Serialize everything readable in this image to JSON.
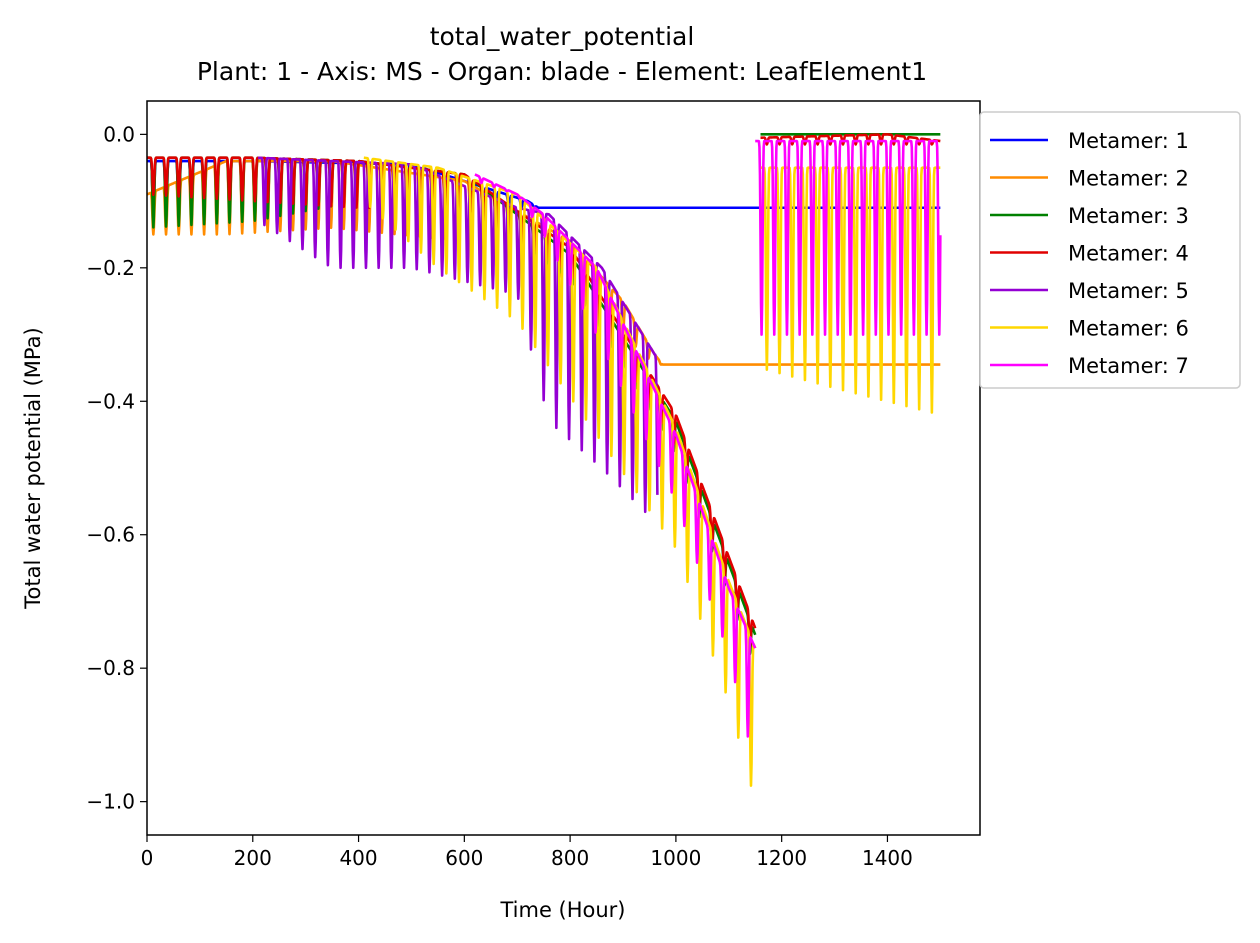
{
  "chart_data": {
    "type": "line",
    "title": "total_water_potential",
    "subtitle": "Plant: 1 - Axis: MS - Organ: blade - Element: LeafElement1",
    "xlabel": "Time (Hour)",
    "ylabel": "Total water potential (MPa)",
    "xlim": [
      0,
      1575
    ],
    "ylim": [
      -1.05,
      0.05
    ],
    "xticks": [
      0,
      200,
      400,
      600,
      800,
      1000,
      1200,
      1400
    ],
    "yticks": [
      -1.0,
      -0.8,
      -0.6,
      -0.4,
      -0.2,
      0.0
    ],
    "xtick_labels": [
      "0",
      "200",
      "400",
      "600",
      "800",
      "1000",
      "1200",
      "1400"
    ],
    "ytick_labels": [
      "−1.0",
      "−0.8",
      "−0.6",
      "−0.4",
      "−0.2",
      "0.0"
    ],
    "grid": false,
    "legend_position": "outside-top-right",
    "series": [
      {
        "name": "Metamer: 1",
        "color": "#0000ff",
        "segments": [
          {
            "start": 0,
            "end": 1500,
            "period": 24,
            "phases": [
              {
                "t": 0,
                "min": -0.12,
                "max": -0.04
              },
              {
                "t": 200,
                "min": -0.12,
                "max": -0.04
              },
              {
                "t": 500,
                "min": -0.11,
                "max": -0.045
              },
              {
                "t": 720,
                "min": -0.11,
                "max": -0.1
              },
              {
                "t": 740,
                "min": -0.11,
                "max": -0.11
              },
              {
                "t": 1500,
                "min": -0.11,
                "max": -0.11
              }
            ]
          }
        ]
      },
      {
        "name": "Metamer: 2",
        "color": "#ff8c00",
        "segments": [
          {
            "start": 0,
            "end": 1500,
            "period": 24,
            "phases": [
              {
                "t": 0,
                "min": -0.15,
                "max": -0.09
              },
              {
                "t": 150,
                "min": -0.15,
                "max": -0.04
              },
              {
                "t": 350,
                "min": -0.14,
                "max": -0.04
              },
              {
                "t": 600,
                "min": -0.16,
                "max": -0.07
              },
              {
                "t": 800,
                "min": -0.22,
                "max": -0.16
              },
              {
                "t": 900,
                "min": -0.3,
                "max": -0.25
              },
              {
                "t": 960,
                "min": -0.345,
                "max": -0.33
              },
              {
                "t": 975,
                "min": -0.345,
                "max": -0.345
              },
              {
                "t": 1500,
                "min": -0.345,
                "max": -0.345
              }
            ]
          }
        ]
      },
      {
        "name": "Metamer: 3",
        "color": "#008000",
        "segments": [
          {
            "start": 0,
            "end": 1150,
            "period": 24,
            "phases": [
              {
                "t": 0,
                "min": -0.14,
                "max": -0.035
              },
              {
                "t": 200,
                "min": -0.13,
                "max": -0.035
              },
              {
                "t": 400,
                "min": -0.1,
                "max": -0.04
              },
              {
                "t": 600,
                "min": -0.1,
                "max": -0.06
              },
              {
                "t": 800,
                "min": -0.22,
                "max": -0.18
              },
              {
                "t": 1000,
                "min": -0.48,
                "max": -0.43
              },
              {
                "t": 1150,
                "min": -0.8,
                "max": -0.75
              }
            ]
          },
          {
            "start": 1160,
            "end": 1500,
            "period": 24,
            "phases": [
              {
                "t": 1160,
                "min": 0.0,
                "max": 0.0
              },
              {
                "t": 1500,
                "min": 0.0,
                "max": 0.0
              }
            ]
          }
        ]
      },
      {
        "name": "Metamer: 4",
        "color": "#e00000",
        "segments": [
          {
            "start": 0,
            "end": 1150,
            "period": 24,
            "phases": [
              {
                "t": 0,
                "min": -0.09,
                "max": -0.035
              },
              {
                "t": 200,
                "min": -0.1,
                "max": -0.035
              },
              {
                "t": 400,
                "min": -0.11,
                "max": -0.04
              },
              {
                "t": 600,
                "min": -0.11,
                "max": -0.06
              },
              {
                "t": 800,
                "min": -0.21,
                "max": -0.17
              },
              {
                "t": 1000,
                "min": -0.47,
                "max": -0.42
              },
              {
                "t": 1150,
                "min": -0.79,
                "max": -0.74
              }
            ]
          },
          {
            "start": 1160,
            "end": 1500,
            "period": 24,
            "phases": [
              {
                "t": 1160,
                "min": -0.015,
                "max": -0.005
              },
              {
                "t": 1400,
                "min": -0.015,
                "max": 0.0
              },
              {
                "t": 1500,
                "min": -0.015,
                "max": -0.01
              }
            ]
          }
        ]
      },
      {
        "name": "Metamer: 5",
        "color": "#9400d3",
        "segments": [
          {
            "start": 210,
            "end": 965,
            "period": 24,
            "phases": [
              {
                "t": 210,
                "min": -0.13,
                "max": -0.035
              },
              {
                "t": 350,
                "min": -0.2,
                "max": -0.04
              },
              {
                "t": 500,
                "min": -0.2,
                "max": -0.045
              },
              {
                "t": 700,
                "min": -0.24,
                "max": -0.11
              },
              {
                "t": 760,
                "min": -0.43,
                "max": -0.12
              },
              {
                "t": 860,
                "min": -0.5,
                "max": -0.2
              },
              {
                "t": 960,
                "min": -0.58,
                "max": -0.33
              }
            ]
          }
        ]
      },
      {
        "name": "Metamer: 6",
        "color": "#ffd700",
        "segments": [
          {
            "start": 410,
            "end": 1150,
            "period": 24,
            "phases": [
              {
                "t": 410,
                "min": -0.1,
                "max": -0.035
              },
              {
                "t": 550,
                "min": -0.2,
                "max": -0.05
              },
              {
                "t": 700,
                "min": -0.28,
                "max": -0.09
              },
              {
                "t": 850,
                "min": -0.45,
                "max": -0.2
              },
              {
                "t": 1000,
                "min": -0.62,
                "max": -0.44
              },
              {
                "t": 1100,
                "min": -0.85,
                "max": -0.67
              },
              {
                "t": 1150,
                "min": -1.0,
                "max": -0.77
              }
            ]
          },
          {
            "start": 1160,
            "end": 1500,
            "period": 24,
            "phases": [
              {
                "t": 1160,
                "min": -0.35,
                "max": -0.05
              },
              {
                "t": 1300,
                "min": -0.38,
                "max": -0.05
              },
              {
                "t": 1500,
                "min": -0.42,
                "max": -0.05
              }
            ]
          }
        ]
      },
      {
        "name": "Metamer: 7",
        "color": "#ff00ff",
        "segments": [
          {
            "start": 620,
            "end": 1150,
            "period": 24,
            "phases": [
              {
                "t": 620,
                "min": -0.07,
                "max": -0.06
              },
              {
                "t": 700,
                "min": -0.09,
                "max": -0.09
              },
              {
                "t": 750,
                "min": -0.15,
                "max": -0.12
              },
              {
                "t": 850,
                "min": -0.3,
                "max": -0.2
              },
              {
                "t": 1000,
                "min": -0.55,
                "max": -0.45
              },
              {
                "t": 1100,
                "min": -0.78,
                "max": -0.68
              },
              {
                "t": 1150,
                "min": -0.95,
                "max": -0.77
              }
            ]
          },
          {
            "start": 1150,
            "end": 1500,
            "period": 24,
            "phases": [
              {
                "t": 1150,
                "min": -0.3,
                "max": -0.01
              },
              {
                "t": 1500,
                "min": -0.3,
                "max": -0.01
              }
            ]
          }
        ]
      }
    ]
  }
}
